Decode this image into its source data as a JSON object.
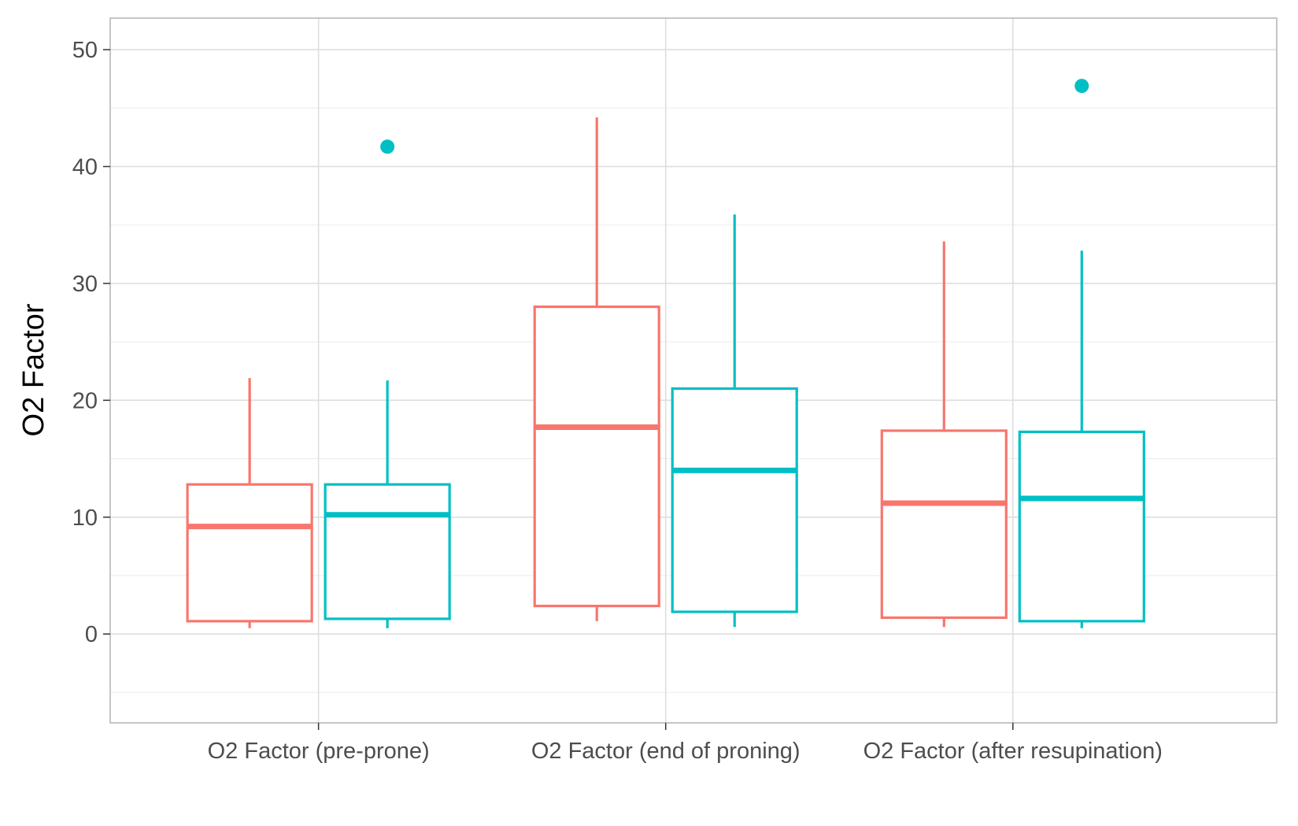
{
  "chart_data": {
    "type": "boxplot",
    "ylabel": "O2 Factor",
    "xlabel": "",
    "ylim": [
      -7.6,
      52.7
    ],
    "y_ticks": [
      0,
      10,
      20,
      30,
      40,
      50
    ],
    "y_tick_labels": [
      "0",
      "10",
      "20",
      "30",
      "40",
      "50"
    ],
    "grid": true,
    "legend": "none",
    "categories": [
      "O2 Factor (pre-prone)",
      "O2 Factor (end of proning)",
      "O2 Factor (after resupination)"
    ],
    "series": [
      {
        "color": "#F8766D",
        "boxes": [
          {
            "whisker_low": 0.5,
            "q1": 1.1,
            "median": 9.2,
            "q3": 12.8,
            "whisker_high": 21.9,
            "outliers": []
          },
          {
            "whisker_low": 1.1,
            "q1": 2.4,
            "median": 17.7,
            "q3": 28.0,
            "whisker_high": 44.2,
            "outliers": []
          },
          {
            "whisker_low": 0.6,
            "q1": 1.4,
            "median": 11.2,
            "q3": 17.4,
            "whisker_high": 33.6,
            "outliers": []
          }
        ]
      },
      {
        "color": "#00BFC4",
        "boxes": [
          {
            "whisker_low": 0.5,
            "q1": 1.3,
            "median": 10.2,
            "q3": 12.8,
            "whisker_high": 21.7,
            "outliers": [
              41.7
            ]
          },
          {
            "whisker_low": 0.6,
            "q1": 1.9,
            "median": 14.0,
            "q3": 21.0,
            "whisker_high": 35.9,
            "outliers": []
          },
          {
            "whisker_low": 0.5,
            "q1": 1.1,
            "median": 11.6,
            "q3": 17.3,
            "whisker_high": 32.8,
            "outliers": [
              46.9
            ]
          }
        ]
      }
    ]
  }
}
